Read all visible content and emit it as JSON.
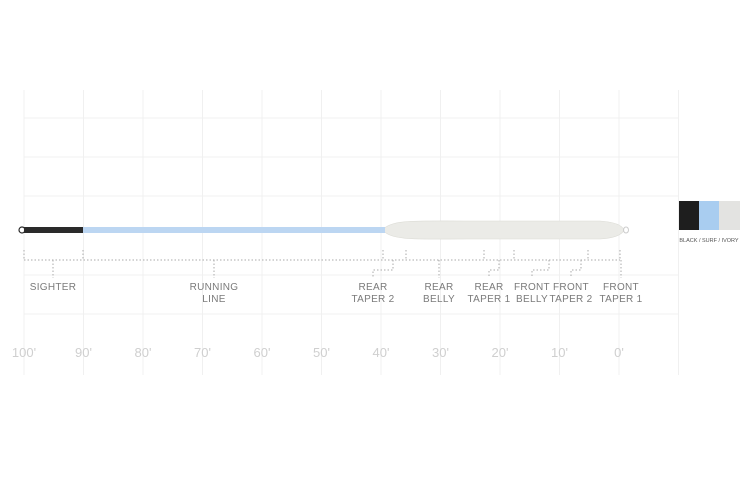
{
  "sections": [
    {
      "lines": [
        "SIGHTER"
      ]
    },
    {
      "lines": [
        "RUNNING",
        "LINE"
      ]
    },
    {
      "lines": [
        "REAR",
        "TAPER 2"
      ]
    },
    {
      "lines": [
        "REAR",
        "BELLY"
      ]
    },
    {
      "lines": [
        "REAR",
        "TAPER 1"
      ]
    },
    {
      "lines": [
        "FRONT",
        "BELLY"
      ]
    },
    {
      "lines": [
        "FRONT",
        "TAPER 2"
      ]
    },
    {
      "lines": [
        "FRONT",
        "TAPER 1"
      ]
    }
  ],
  "distances": [
    "100'",
    "90'",
    "80'",
    "70'",
    "60'",
    "50'",
    "40'",
    "30'",
    "20'",
    "10'",
    "0'"
  ],
  "colors": {
    "label": "BLACK / SURF / IVORY"
  }
}
